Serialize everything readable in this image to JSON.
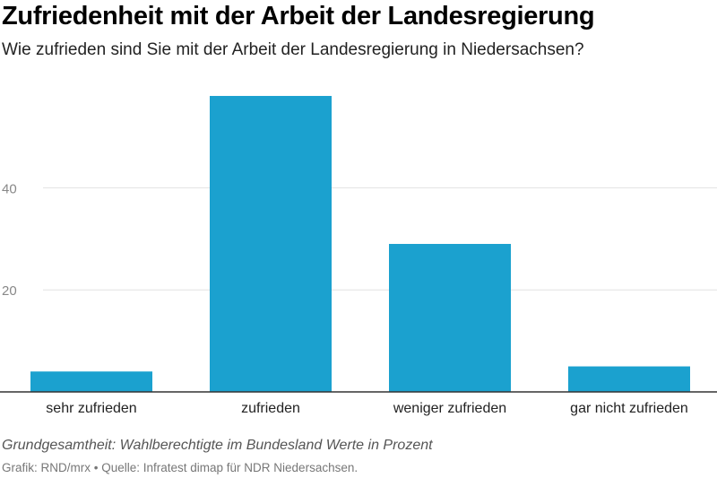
{
  "title": "Zufriedenheit mit der Arbeit der Landesregierung",
  "subtitle": "Wie zufrieden sind Sie mit der Arbeit der Landesregierung in Niedersachsen?",
  "footnote": "Grundgesamtheit: Wahlberechtigte im Bundesland Werte in Prozent",
  "source": "Grafik: RND/mrx • Quelle: Infratest dimap für NDR Niedersachsen.",
  "colors": {
    "bar": "#1ba1cf",
    "grid": "#e2e2e2",
    "axis": "#333333",
    "tick_text": "#888888"
  },
  "chart_data": {
    "type": "bar",
    "title": "Zufriedenheit mit der Arbeit der Landesregierung",
    "categories": [
      "sehr zufrieden",
      "zufrieden",
      "weniger zufrieden",
      "gar nicht zufrieden"
    ],
    "values": [
      4,
      58,
      29,
      5
    ],
    "ylim": [
      0,
      58
    ],
    "yticks": [
      20,
      40
    ],
    "grid": true,
    "xlabel": "",
    "ylabel": ""
  }
}
